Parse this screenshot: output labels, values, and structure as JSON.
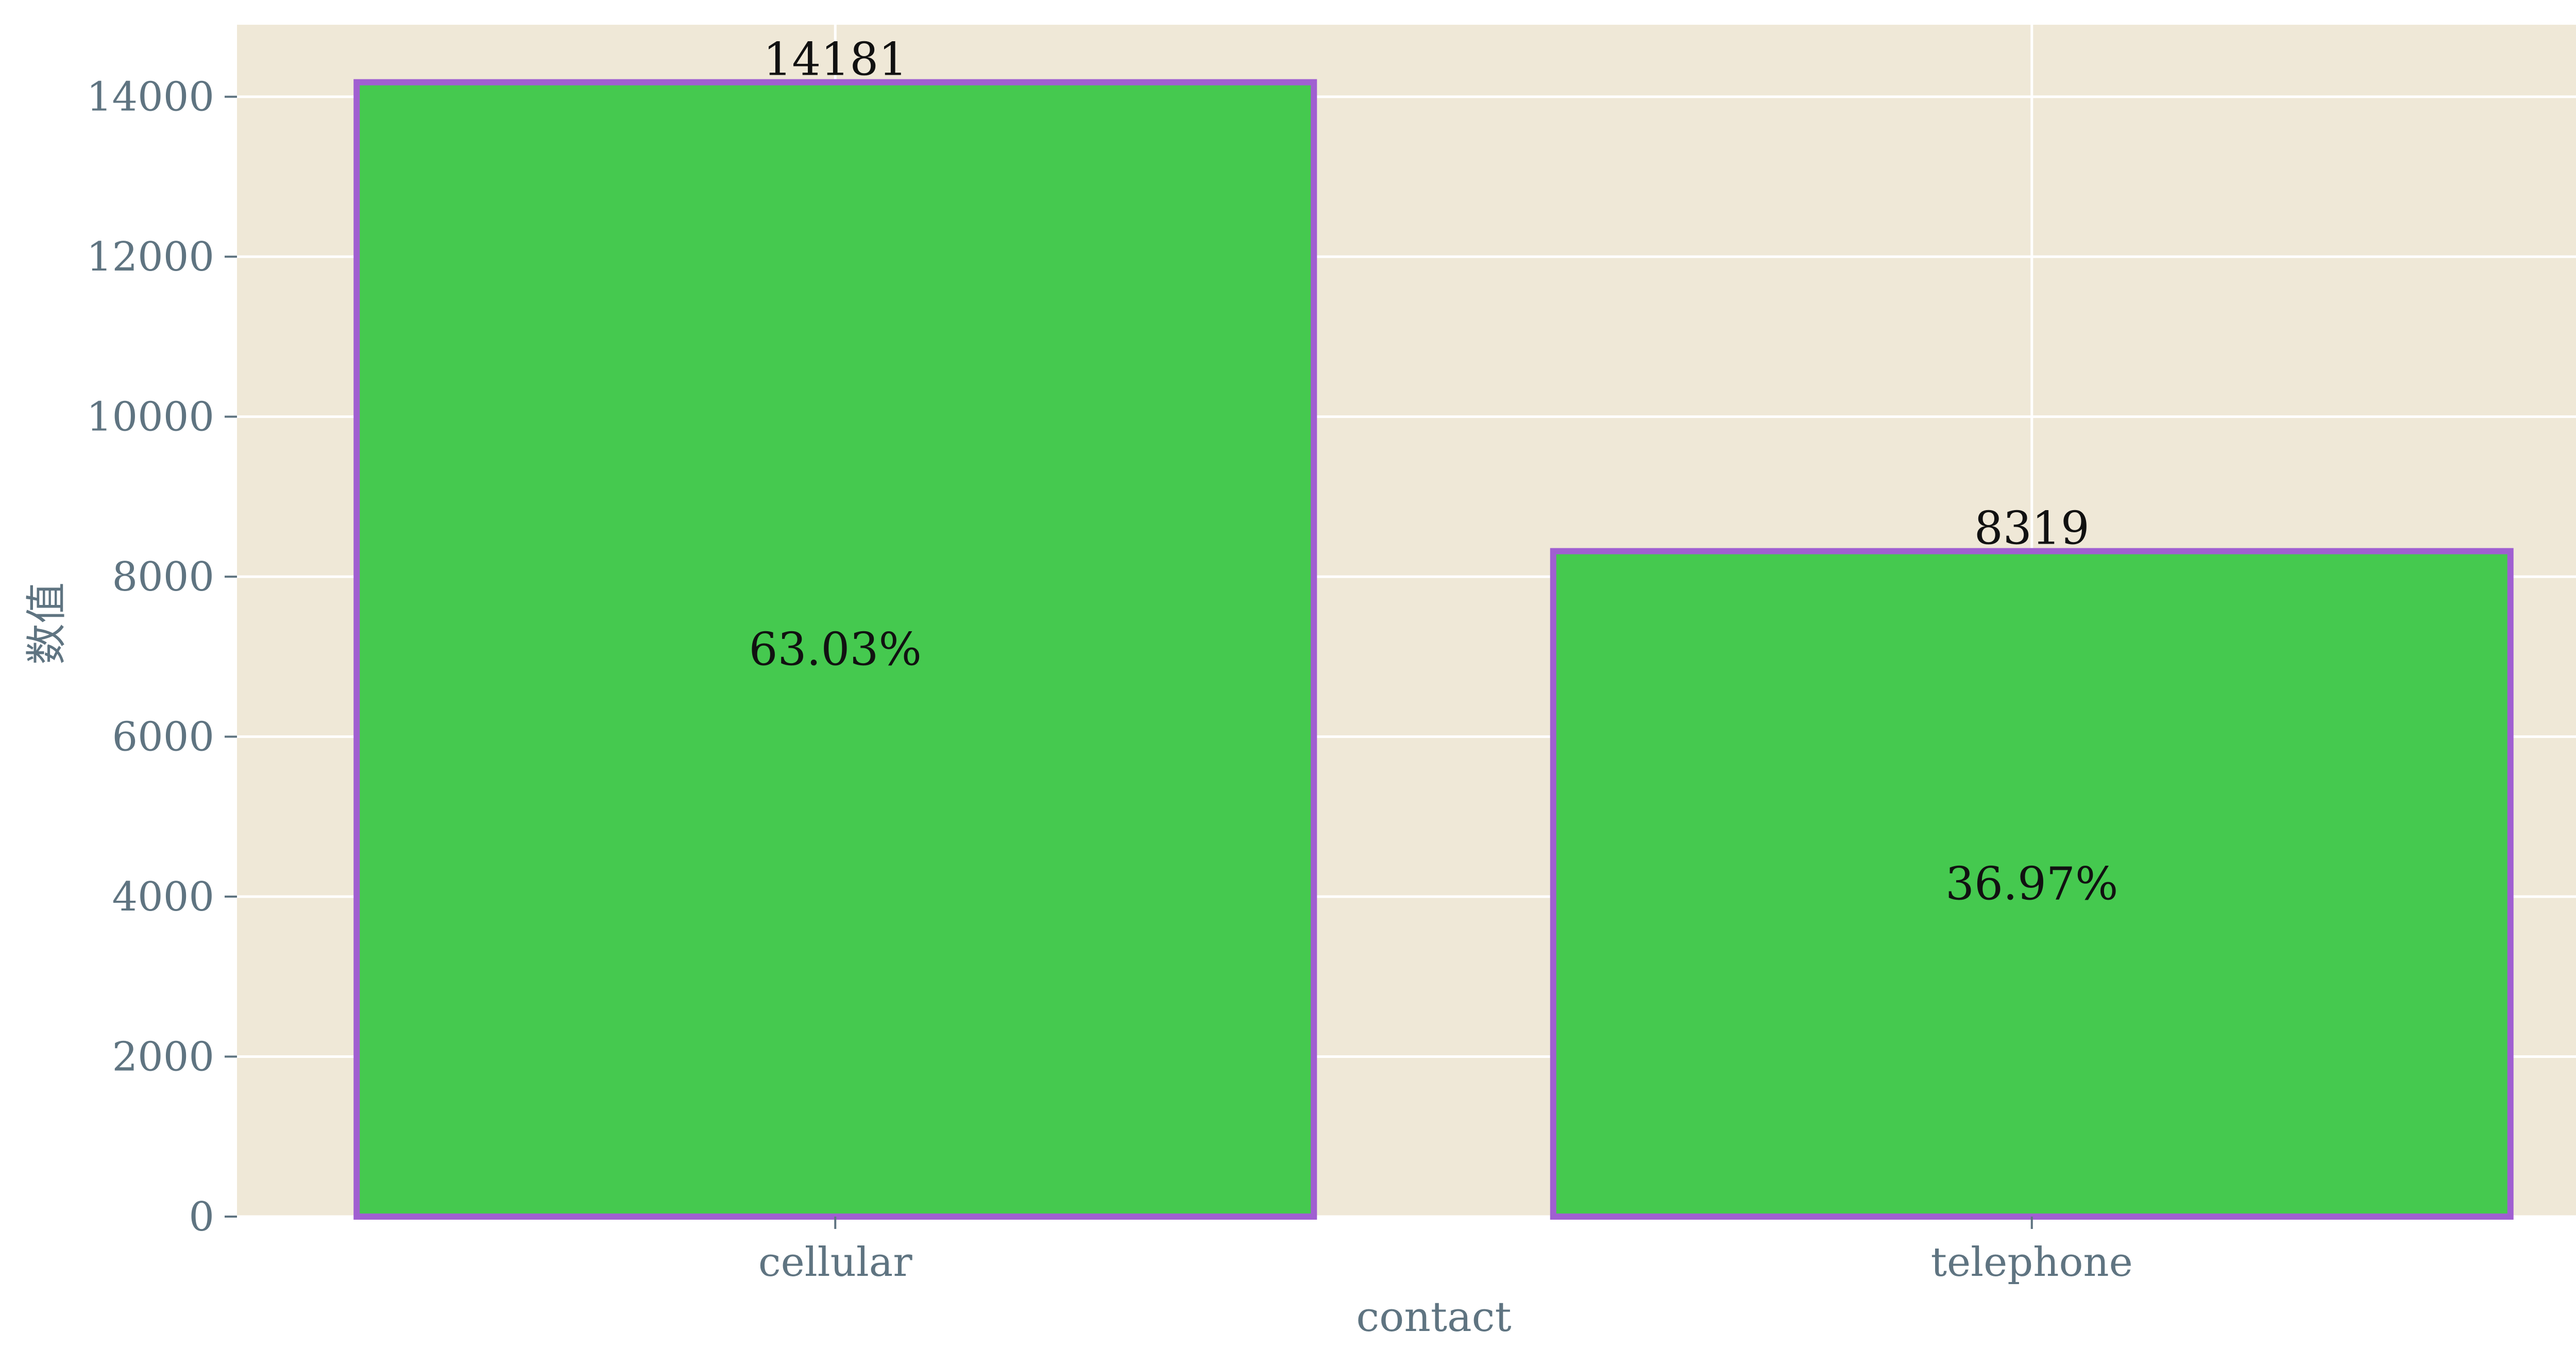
{
  "chart_data": {
    "type": "bar",
    "categories": [
      "cellular",
      "telephone"
    ],
    "values": [
      14181,
      8319
    ],
    "value_labels": [
      "14181",
      "8319"
    ],
    "percent_labels": [
      "63.03%",
      "36.97%"
    ],
    "xlabel": "contact",
    "ylabel": "数值",
    "ylim": [
      0,
      14900
    ],
    "yticks": [
      0,
      2000,
      4000,
      6000,
      8000,
      10000,
      12000,
      14000
    ],
    "grid": true,
    "legend": "none",
    "colors": {
      "plot_background": "#efe8d7",
      "grid": "#ffffff",
      "bar_fill": "#45c94f",
      "bar_edge": "#a05fd1",
      "tick_text": "#5f7481",
      "label_text": "#111111"
    }
  }
}
